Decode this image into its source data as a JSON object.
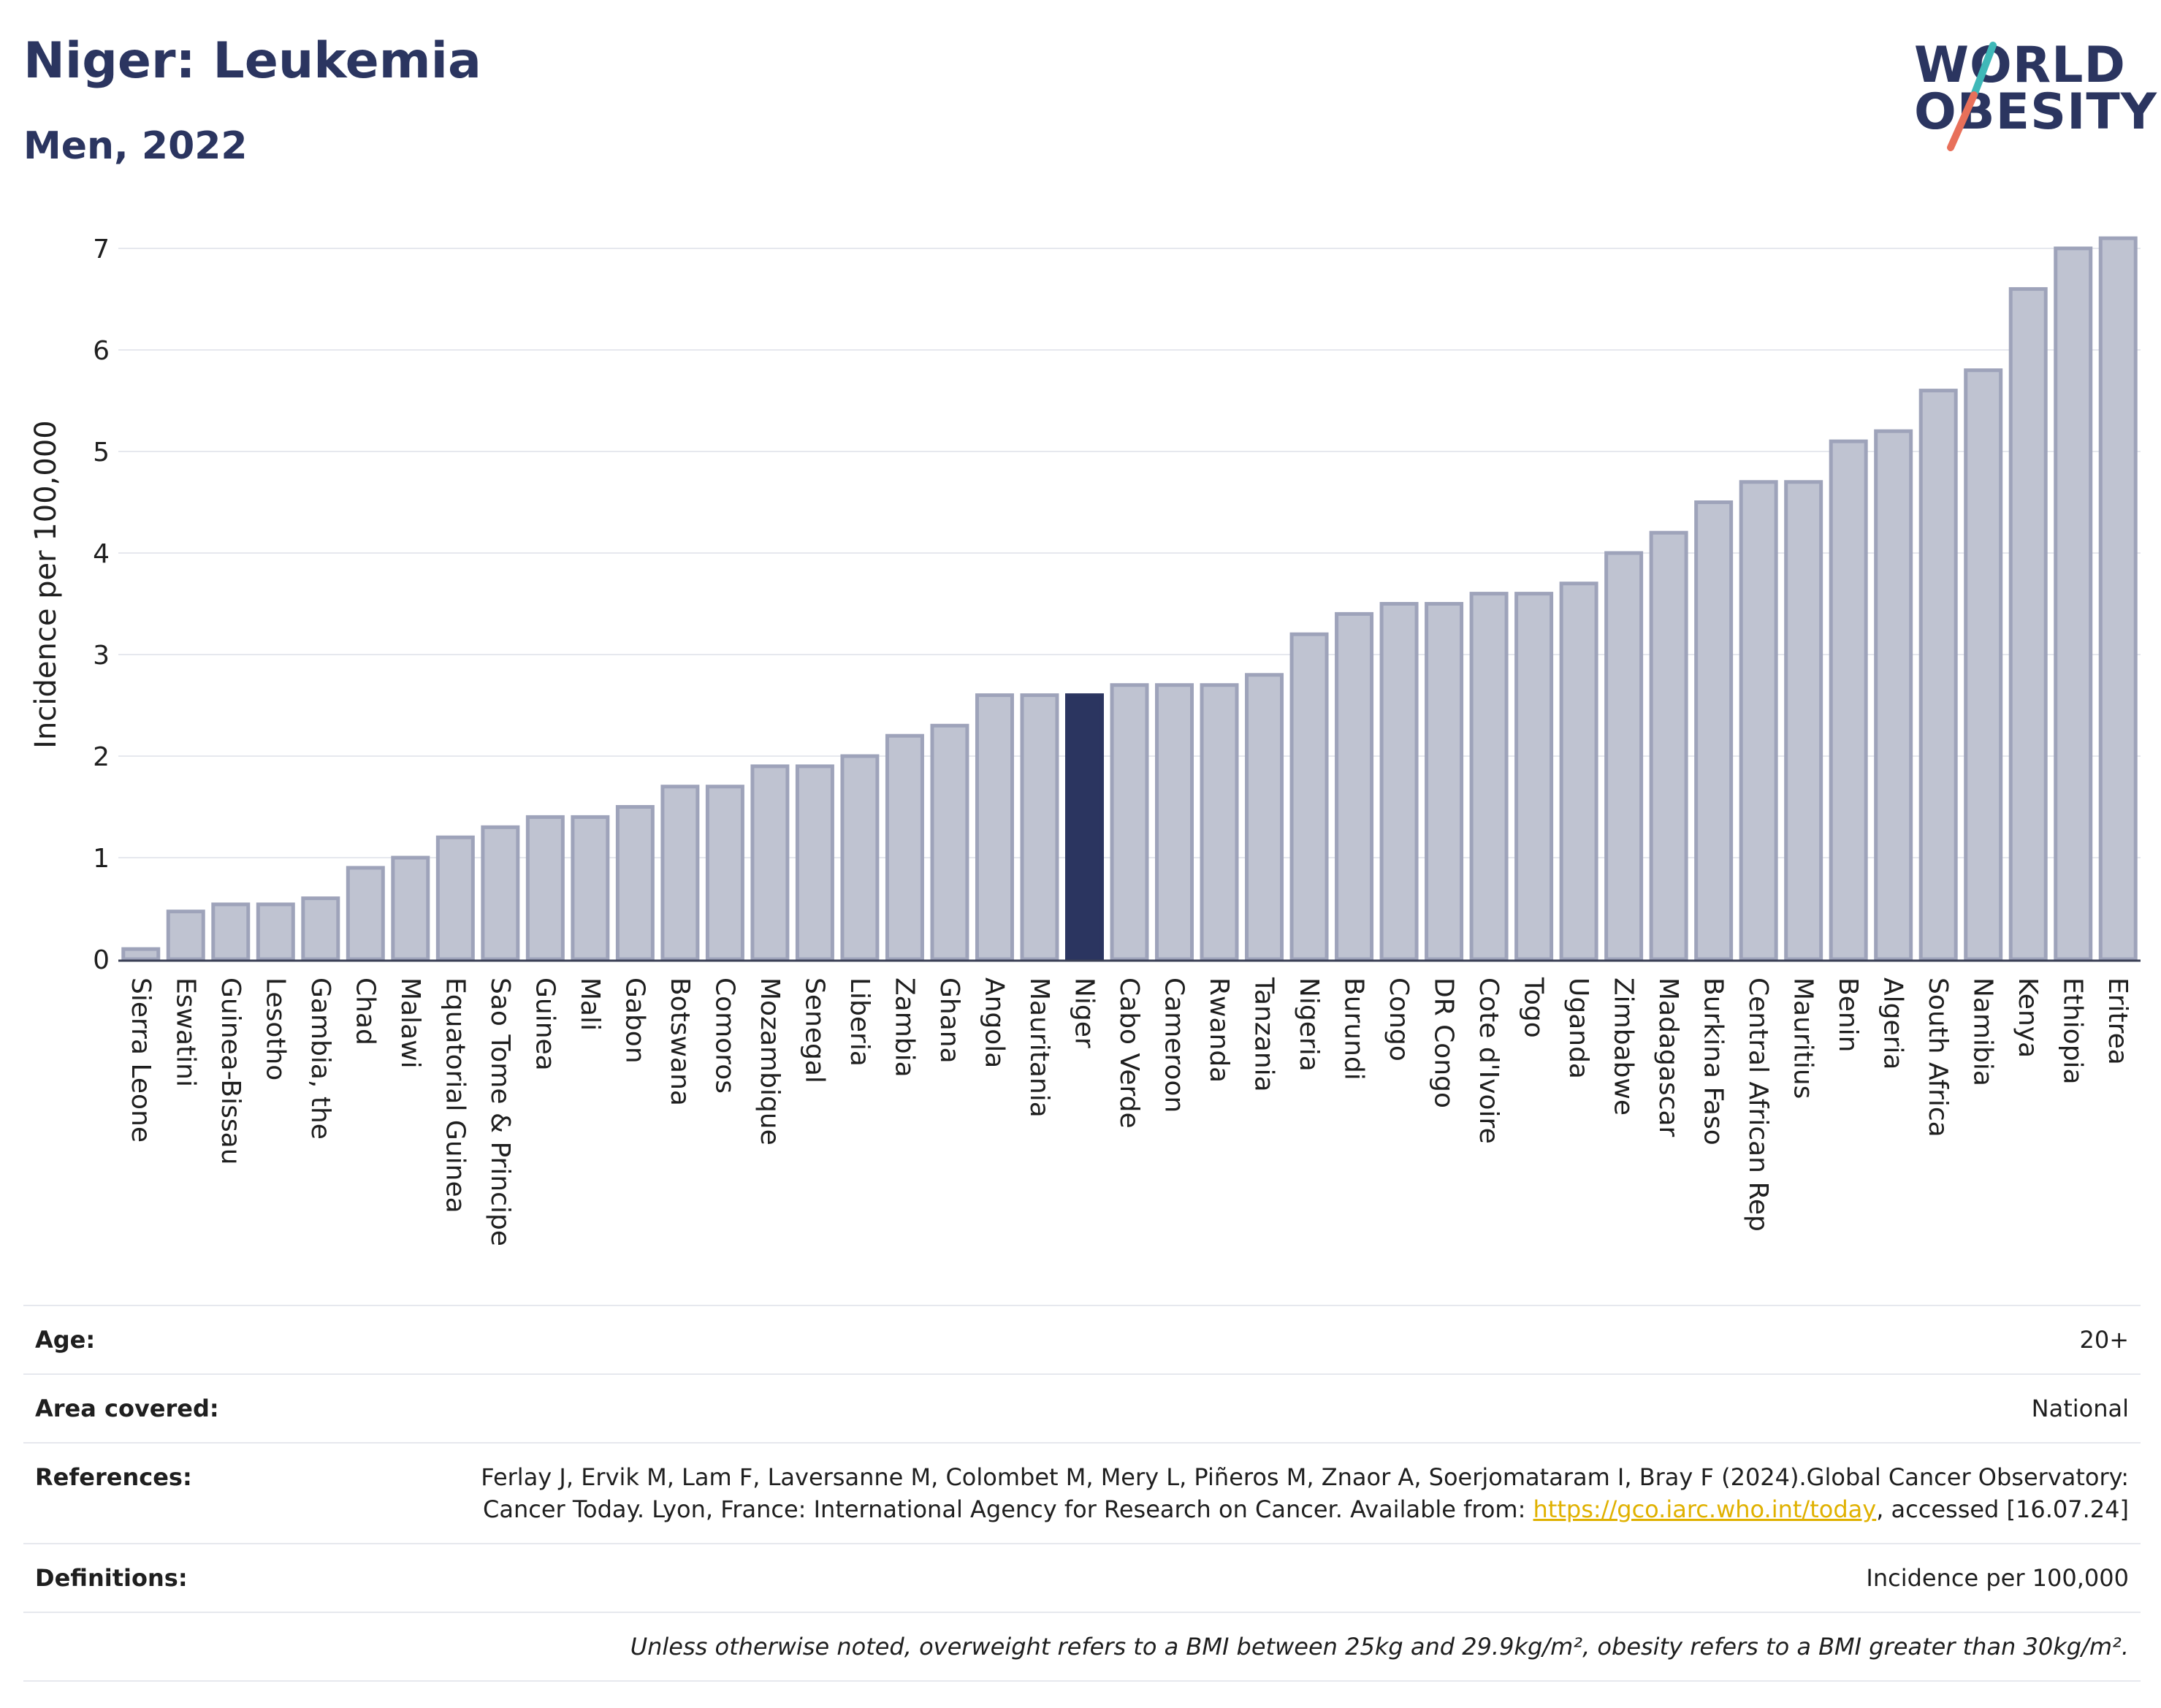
{
  "header": {
    "title": "Niger: Leukemia",
    "subtitle": "Men, 2022"
  },
  "logo": {
    "line1": "WORLD",
    "line2": "OBESITY",
    "colors": {
      "text": "#2b3560",
      "slash_top": "#3fb8b8",
      "slash_bottom": "#e8705a"
    }
  },
  "colors": {
    "bar_fill": "#bfc3d1",
    "bar_stroke": "#9ea3ba",
    "highlight_fill": "#2b3560",
    "axis_text": "#1f1f1f",
    "grid": "#e6e8ee"
  },
  "chart_data": {
    "type": "bar",
    "ylabel": "Incidence per 100,000",
    "xlabel": "",
    "ylim": [
      0,
      7.3
    ],
    "yticks": [
      0,
      1,
      2,
      3,
      4,
      5,
      6,
      7
    ],
    "grid": true,
    "highlight": "Niger",
    "categories": [
      "Sierra Leone",
      "Eswatini",
      "Guinea-Bissau",
      "Lesotho",
      "Gambia, the",
      "Chad",
      "Malawi",
      "Equatorial Guinea",
      "Sao Tome & Principe",
      "Guinea",
      "Mali",
      "Gabon",
      "Botswana",
      "Comoros",
      "Mozambique",
      "Senegal",
      "Liberia",
      "Zambia",
      "Ghana",
      "Angola",
      "Mauritania",
      "Niger",
      "Cabo Verde",
      "Cameroon",
      "Rwanda",
      "Tanzania",
      "Nigeria",
      "Burundi",
      "Congo",
      "DR Congo",
      "Cote d'Ivoire",
      "Togo",
      "Uganda",
      "Zimbabwe",
      "Madagascar",
      "Burkina Faso",
      "Central African Rep",
      "Mauritius",
      "Benin",
      "Algeria",
      "South Africa",
      "Namibia",
      "Kenya",
      "Ethiopia",
      "Eritrea"
    ],
    "values": [
      0.1,
      0.47,
      0.54,
      0.54,
      0.6,
      0.9,
      1.0,
      1.2,
      1.3,
      1.4,
      1.4,
      1.5,
      1.7,
      1.7,
      1.9,
      1.9,
      2.0,
      2.2,
      2.3,
      2.6,
      2.6,
      2.6,
      2.7,
      2.7,
      2.7,
      2.8,
      3.2,
      3.4,
      3.5,
      3.5,
      3.6,
      3.6,
      3.7,
      4.0,
      4.2,
      4.5,
      4.7,
      4.7,
      5.1,
      5.2,
      5.6,
      5.8,
      6.6,
      7.0,
      7.1
    ]
  },
  "info": {
    "age_label": "Age:",
    "age_value": "20+",
    "area_label": "Area covered:",
    "area_value": "National",
    "references_label": "References:",
    "references_text_1": "Ferlay J, Ervik M, Lam F, Laversanne M, Colombet M, Mery L, Piñeros M, Znaor A, Soerjomataram I, Bray F (2024).Global Cancer Observatory: Cancer Today. Lyon, France: International Agency for Research on Cancer. Available from: ",
    "references_link": "https://gco.iarc.who.int/today",
    "references_text_2": ", accessed [16.07.24]",
    "definitions_label": "Definitions:",
    "definitions_value": "Incidence per 100,000",
    "note": "Unless otherwise noted, overweight refers to a BMI between 25kg and 29.9kg/m², obesity refers to a BMI greater than 30kg/m²."
  }
}
